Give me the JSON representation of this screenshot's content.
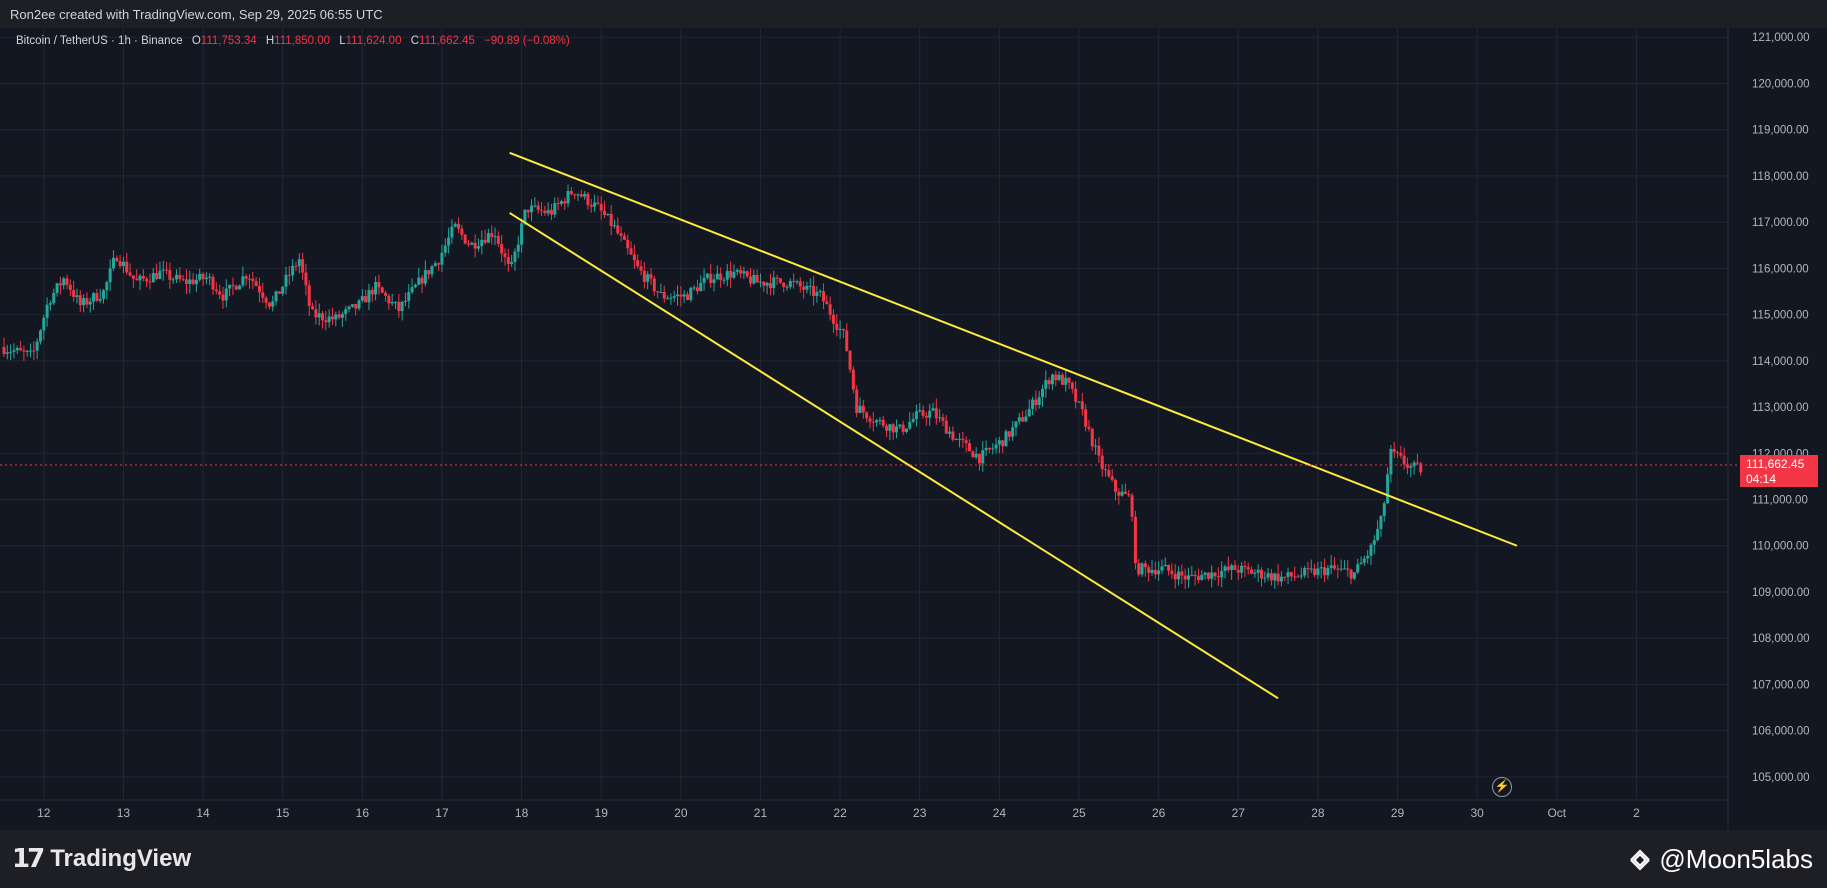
{
  "header": {
    "attribution": "Ron2ee created with TradingView.com, Sep 29, 2025 06:55 UTC"
  },
  "legend": {
    "symbol": "Bitcoin / TetherUS · 1h · Binance",
    "open_label": "O",
    "open": "111,753.34",
    "high_label": "H",
    "high": "111,850.00",
    "low_label": "L",
    "low": "111,624.00",
    "close_label": "C",
    "close": "111,662.45",
    "change": "−90.89 (−0.08%)"
  },
  "price_tag": {
    "price": "111,662.45",
    "countdown": "04:14"
  },
  "footer": {
    "brand": "TradingView",
    "watermark": "@Moon5labs"
  },
  "icons": {
    "flash": "lightning-icon",
    "brand": "tradingview-logo-icon",
    "watermark": "binance-diamond-icon"
  },
  "colors": {
    "up": "#26a69a",
    "down": "#f23645",
    "trendline": "#ffeb3b",
    "background": "#1e1f25",
    "grid": "#2a2e39"
  },
  "chart_data": {
    "type": "candlestick",
    "ylim": [
      104500,
      121200
    ],
    "y_ticks": [
      "105,000.00",
      "106,000.00",
      "107,000.00",
      "108,000.00",
      "109,000.00",
      "110,000.00",
      "111,000.00",
      "112,000.00",
      "113,000.00",
      "114,000.00",
      "115,000.00",
      "116,000.00",
      "117,000.00",
      "118,000.00",
      "119,000.00",
      "120,000.00",
      "121,000.00"
    ],
    "x_labels": [
      "12",
      "13",
      "14",
      "15",
      "16",
      "17",
      "18",
      "19",
      "20",
      "21",
      "22",
      "23",
      "24",
      "25",
      "26",
      "27",
      "28",
      "29",
      "30",
      "Oct",
      "2"
    ],
    "x_range": [
      11.45,
      33.15
    ],
    "price_series": [
      [
        11.5,
        114300
      ],
      [
        11.9,
        114100
      ],
      [
        12.1,
        115300
      ],
      [
        12.3,
        115800
      ],
      [
        12.5,
        115200
      ],
      [
        12.8,
        115500
      ],
      [
        12.95,
        116300
      ],
      [
        13.2,
        115700
      ],
      [
        13.5,
        115900
      ],
      [
        13.8,
        115700
      ],
      [
        14.1,
        115800
      ],
      [
        14.3,
        115400
      ],
      [
        14.6,
        115900
      ],
      [
        14.9,
        115200
      ],
      [
        15.1,
        115800
      ],
      [
        15.25,
        116200
      ],
      [
        15.4,
        115000
      ],
      [
        15.7,
        114900
      ],
      [
        16.0,
        115200
      ],
      [
        16.2,
        115600
      ],
      [
        16.5,
        115100
      ],
      [
        16.8,
        115800
      ],
      [
        17.0,
        116200
      ],
      [
        17.2,
        116900
      ],
      [
        17.4,
        116500
      ],
      [
        17.7,
        116800
      ],
      [
        17.9,
        115900
      ],
      [
        18.1,
        117300
      ],
      [
        18.4,
        117200
      ],
      [
        18.7,
        117700
      ],
      [
        19.0,
        117300
      ],
      [
        19.2,
        116900
      ],
      [
        19.5,
        116000
      ],
      [
        19.8,
        115400
      ],
      [
        20.1,
        115400
      ],
      [
        20.4,
        115800
      ],
      [
        20.7,
        115900
      ],
      [
        21.0,
        115700
      ],
      [
        21.4,
        115700
      ],
      [
        21.8,
        115400
      ],
      [
        22.1,
        114500
      ],
      [
        22.25,
        113000
      ],
      [
        22.5,
        112700
      ],
      [
        22.8,
        112500
      ],
      [
        23.0,
        112800
      ],
      [
        23.2,
        112900
      ],
      [
        23.5,
        112300
      ],
      [
        23.8,
        111900
      ],
      [
        24.1,
        112300
      ],
      [
        24.4,
        112900
      ],
      [
        24.7,
        113700
      ],
      [
        24.9,
        113500
      ],
      [
        25.1,
        112800
      ],
      [
        25.3,
        111800
      ],
      [
        25.5,
        111200
      ],
      [
        25.7,
        111000
      ],
      [
        25.75,
        109500
      ],
      [
        26.1,
        109500
      ],
      [
        26.4,
        109300
      ],
      [
        26.7,
        109400
      ],
      [
        27.0,
        109500
      ],
      [
        27.3,
        109400
      ],
      [
        27.6,
        109300
      ],
      [
        27.9,
        109400
      ],
      [
        28.2,
        109500
      ],
      [
        28.5,
        109400
      ],
      [
        28.7,
        109900
      ],
      [
        28.85,
        110600
      ],
      [
        28.95,
        112000
      ],
      [
        29.05,
        111900
      ],
      [
        29.2,
        111700
      ],
      [
        29.3,
        111662
      ]
    ],
    "trendlines": [
      {
        "from": [
          17.85,
          118500
        ],
        "to": [
          30.5,
          110000
        ]
      },
      {
        "from": [
          17.85,
          117200
        ],
        "to": [
          27.5,
          106700
        ]
      }
    ],
    "current_price": 111662.45
  }
}
